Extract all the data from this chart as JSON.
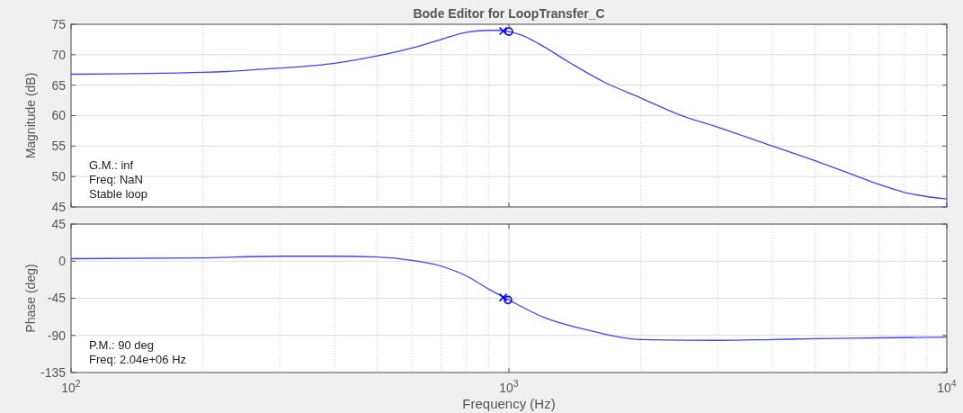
{
  "chart_data": [
    {
      "type": "line",
      "title": "Bode Editor for LoopTransfer_C",
      "ylabel": "Magnitude (dB)",
      "log": "x",
      "grid": true,
      "tick_labels": "y",
      "line_style": "solid",
      "xlim": [
        100,
        10000
      ],
      "xticks": [
        100,
        1000,
        10000
      ],
      "ylim": [
        45,
        75
      ],
      "yticks": [
        45,
        50,
        55,
        60,
        65,
        70,
        75
      ],
      "annotations": [
        "G.M.: inf",
        "Freq: NaN",
        "Stable loop"
      ],
      "series": [
        {
          "color": "#4040ff",
          "x": [
            100,
            200,
            300,
            400,
            500,
            600,
            700,
            800,
            900,
            950,
            1000,
            1070,
            1170,
            1370,
            1650,
            2000,
            2460,
            3000,
            4000,
            5000,
            6000,
            7000,
            8000,
            10000
          ],
          "values": [
            66.8,
            67.1,
            67.8,
            68.6,
            69.8,
            71.1,
            72.5,
            73.7,
            74.0,
            74.0,
            73.8,
            73.2,
            71.8,
            68.8,
            65.5,
            62.9,
            60.1,
            58.1,
            55.0,
            52.6,
            50.5,
            48.7,
            47.4,
            46.3
          ]
        },
        {
          "type": "scatter",
          "marker": "cross",
          "color": "#0000ff",
          "x": [
            970
          ],
          "values": [
            73.9
          ]
        },
        {
          "type": "scatter",
          "marker": "circle",
          "color": "#0000ff",
          "x": [
            1000
          ],
          "values": [
            73.8
          ]
        }
      ]
    },
    {
      "type": "line",
      "xlabel": "Frequency (Hz)",
      "ylabel": "Phase (deg)",
      "log": "x",
      "grid": true,
      "line_style": "solid",
      "xlim": [
        100,
        10000
      ],
      "xticks": [
        {
          "value": 100,
          "label": "10$^{2}$"
        },
        {
          "value": 1000,
          "label": "10$^{3}$"
        },
        {
          "value": 10000,
          "label": "10$^{4}$"
        }
      ],
      "ylim": [
        -135,
        45
      ],
      "yticks": [
        -135,
        -90,
        -45,
        0,
        45
      ],
      "annotations": [
        "P.M.: 90 deg",
        "Freq: 2.04e+06 Hz"
      ],
      "series": [
        {
          "color": "#4040ff",
          "x": [
            100,
            200,
            300,
            400,
            500,
            600,
            700,
            800,
            900,
            1000,
            1200,
            1500,
            2000,
            3000,
            4000,
            5000,
            7000,
            10000
          ],
          "values": [
            3,
            4,
            6,
            6,
            5,
            1,
            -6,
            -18,
            -34,
            -47,
            -68,
            -83,
            -95,
            -96,
            -95,
            -94,
            -93,
            -92
          ]
        },
        {
          "type": "scatter",
          "marker": "cross",
          "color": "#0000ff",
          "x": [
            970
          ],
          "values": [
            -44
          ]
        },
        {
          "type": "scatter",
          "marker": "circle",
          "color": "#0000ff",
          "x": [
            995
          ],
          "values": [
            -47
          ]
        }
      ]
    }
  ]
}
